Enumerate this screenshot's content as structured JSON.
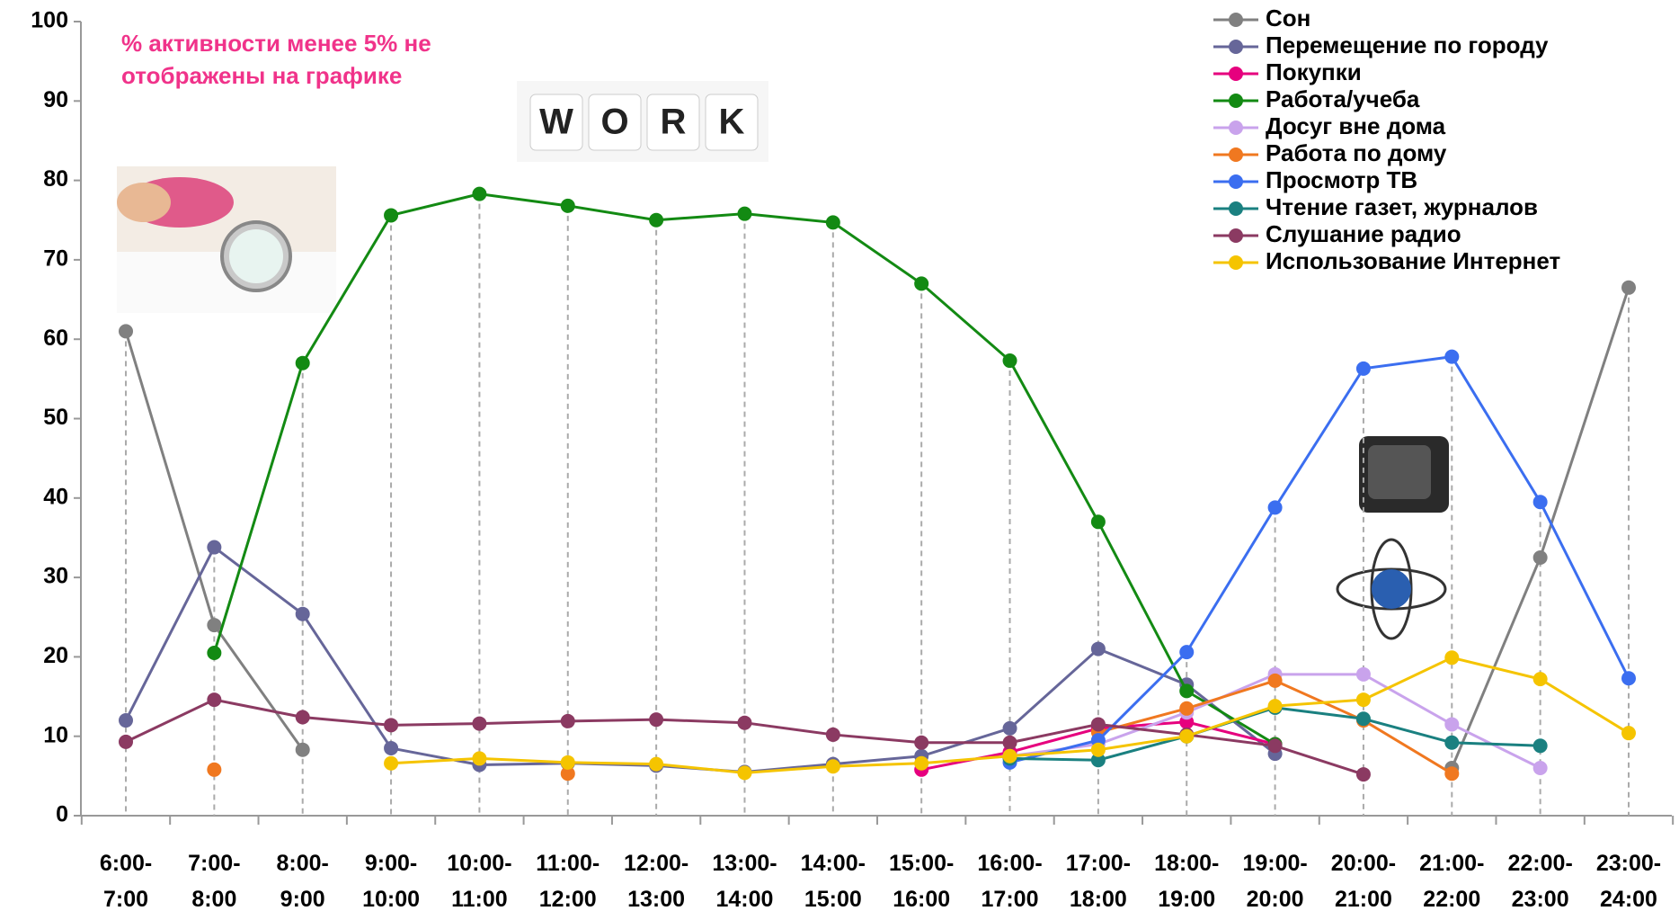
{
  "chart_data": {
    "type": "line",
    "annotation": "% активности менее 5% не отображены на графике",
    "image_text": [
      "W",
      "O",
      "R",
      "K"
    ],
    "categories": [
      "6:00-7:00",
      "7:00-8:00",
      "8:00-9:00",
      "9:00-10:00",
      "10:00-11:00",
      "11:00-12:00",
      "12:00-13:00",
      "13:00-14:00",
      "14:00-15:00",
      "15:00-16:00",
      "16:00-17:00",
      "17:00-18:00",
      "18:00-19:00",
      "19:00-20:00",
      "20:00-21:00",
      "21:00-22:00",
      "22:00-23:00",
      "23:00-24:00"
    ],
    "ylim": [
      0,
      100
    ],
    "yticks": [
      0,
      10,
      20,
      30,
      40,
      50,
      60,
      70,
      80,
      90,
      100
    ],
    "series": [
      {
        "name": "Сон",
        "color": "#808080",
        "values": [
          61,
          24,
          8.3,
          null,
          null,
          null,
          null,
          null,
          null,
          null,
          null,
          null,
          null,
          null,
          null,
          6,
          32.5,
          66.5
        ]
      },
      {
        "name": "Перемещение по городу",
        "color": "#666699",
        "values": [
          12,
          33.8,
          25.4,
          8.5,
          6.4,
          6.6,
          6.3,
          5.5,
          6.5,
          7.5,
          11,
          21,
          16.5,
          7.8,
          null,
          null,
          null,
          null
        ]
      },
      {
        "name": "Покупки",
        "color": "#e6007e",
        "values": [
          null,
          null,
          null,
          null,
          null,
          null,
          null,
          null,
          null,
          5.8,
          8,
          11,
          11.8,
          9,
          null,
          null,
          null,
          null
        ]
      },
      {
        "name": "Работа/учеба",
        "color": "#138a13",
        "values": [
          null,
          20.5,
          57,
          75.6,
          78.3,
          76.8,
          75,
          75.8,
          74.7,
          67,
          57.3,
          37,
          15.7,
          9,
          null,
          null,
          null,
          null
        ]
      },
      {
        "name": "Досуг вне дома",
        "color": "#c9a3ec",
        "values": [
          null,
          null,
          null,
          null,
          null,
          null,
          null,
          null,
          null,
          null,
          7.5,
          9,
          13,
          17.8,
          17.8,
          11.5,
          6,
          null
        ]
      },
      {
        "name": "Работа по дому",
        "color": "#f07820",
        "values": [
          null,
          5.8,
          null,
          null,
          null,
          5.3,
          null,
          null,
          null,
          null,
          null,
          10.5,
          13.5,
          17,
          12,
          5.3,
          null,
          null
        ]
      },
      {
        "name": "Просмотр ТВ",
        "color": "#3b6ef0",
        "values": [
          null,
          null,
          null,
          null,
          null,
          null,
          null,
          null,
          null,
          null,
          6.7,
          9.5,
          20.6,
          38.8,
          56.3,
          57.8,
          39.5,
          17.3
        ]
      },
      {
        "name": "Чтение газет, журналов",
        "color": "#1a8080",
        "values": [
          null,
          null,
          null,
          null,
          null,
          null,
          null,
          null,
          null,
          null,
          7.2,
          7,
          10,
          13.6,
          12.2,
          9.2,
          8.8,
          null
        ]
      },
      {
        "name": "Слушание радио",
        "color": "#8b3a62",
        "values": [
          9.3,
          14.6,
          12.4,
          11.4,
          11.6,
          11.9,
          12.1,
          11.7,
          10.2,
          9.2,
          9.2,
          11.5,
          10.2,
          8.8,
          5.2,
          null,
          null,
          null
        ]
      },
      {
        "name": "Использование Интернет",
        "color": "#f5c400",
        "values": [
          null,
          null,
          null,
          6.6,
          7.2,
          6.7,
          6.5,
          5.4,
          6.2,
          6.6,
          7.5,
          8.3,
          10,
          13.8,
          14.6,
          19.9,
          17.2,
          10.4
        ]
      }
    ]
  }
}
